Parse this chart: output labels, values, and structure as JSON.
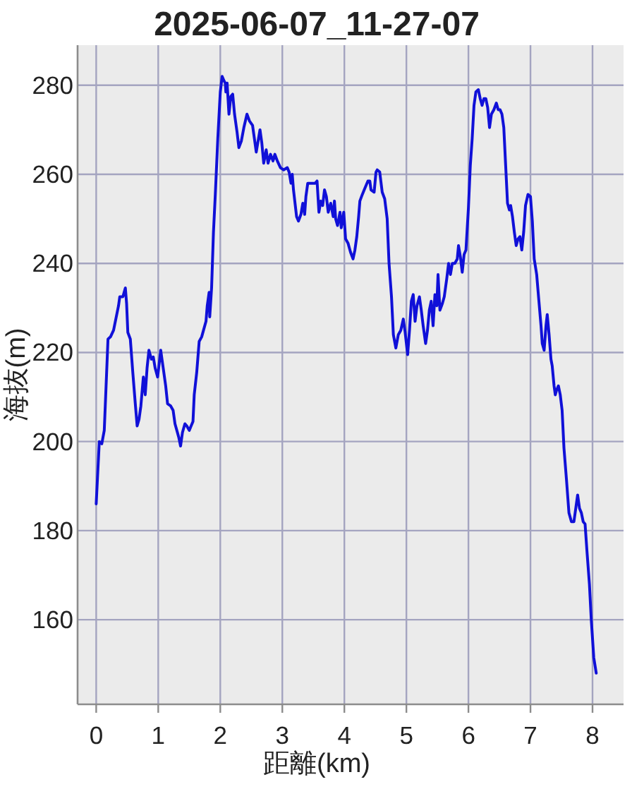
{
  "chart_data": {
    "type": "line",
    "title": "2025-06-07_11-27-07",
    "xlabel": "距離(km)",
    "ylabel": "海抜(m)",
    "x": [
      0,
      0.05,
      0.09,
      0.13,
      0.19,
      0.23,
      0.28,
      0.36,
      0.38,
      0.43,
      0.47,
      0.49,
      0.51,
      0.55,
      0.59,
      0.63,
      0.66,
      0.69,
      0.72,
      0.76,
      0.79,
      0.82,
      0.85,
      0.89,
      0.92,
      0.95,
      0.99,
      1.04,
      1.08,
      1.12,
      1.15,
      1.2,
      1.24,
      1.27,
      1.33,
      1.36,
      1.39,
      1.43,
      1.46,
      1.5,
      1.53,
      1.56,
      1.58,
      1.62,
      1.66,
      1.7,
      1.73,
      1.77,
      1.79,
      1.82,
      1.83,
      1.86,
      1.89,
      1.92,
      1.96,
      2.0,
      2.03,
      2.06,
      2.08,
      2.09,
      2.11,
      2.14,
      2.17,
      2.2,
      2.23,
      2.27,
      2.3,
      2.34,
      2.38,
      2.43,
      2.47,
      2.52,
      2.55,
      2.58,
      2.61,
      2.64,
      2.67,
      2.7,
      2.74,
      2.77,
      2.81,
      2.85,
      2.88,
      2.92,
      2.97,
      3.02,
      3.08,
      3.11,
      3.14,
      3.16,
      3.18,
      3.23,
      3.26,
      3.3,
      3.33,
      3.36,
      3.38,
      3.41,
      3.48,
      3.53,
      3.56,
      3.59,
      3.62,
      3.65,
      3.68,
      3.71,
      3.74,
      3.78,
      3.82,
      3.84,
      3.86,
      3.89,
      3.93,
      3.95,
      3.99,
      4.02,
      4.06,
      4.1,
      4.14,
      4.17,
      4.2,
      4.23,
      4.25,
      4.29,
      4.32,
      4.35,
      4.38,
      4.41,
      4.43,
      4.48,
      4.51,
      4.53,
      4.57,
      4.61,
      4.65,
      4.69,
      4.72,
      4.76,
      4.79,
      4.83,
      4.87,
      4.91,
      4.95,
      4.98,
      5.02,
      5.05,
      5.08,
      5.11,
      5.14,
      5.17,
      5.21,
      5.24,
      5.27,
      5.31,
      5.34,
      5.37,
      5.4,
      5.43,
      5.46,
      5.49,
      5.51,
      5.54,
      5.58,
      5.61,
      5.65,
      5.68,
      5.71,
      5.74,
      5.78,
      5.82,
      5.84,
      5.87,
      5.9,
      5.93,
      5.96,
      6.0,
      6.03,
      6.06,
      6.09,
      6.12,
      6.16,
      6.19,
      6.22,
      6.25,
      6.28,
      6.31,
      6.34,
      6.37,
      6.41,
      6.45,
      6.48,
      6.51,
      6.54,
      6.57,
      6.6,
      6.63,
      6.66,
      6.68,
      6.71,
      6.74,
      6.77,
      6.8,
      6.83,
      6.86,
      6.89,
      6.92,
      6.96,
      7.0,
      7.03,
      7.06,
      7.1,
      7.13,
      7.17,
      7.19,
      7.22,
      7.25,
      7.27,
      7.3,
      7.33,
      7.35,
      7.38,
      7.4,
      7.42,
      7.45,
      7.48,
      7.51,
      7.54,
      7.58,
      7.62,
      7.66,
      7.7,
      7.73,
      7.76,
      7.79,
      7.82,
      7.85,
      7.88,
      7.91,
      7.95,
      7.98,
      8.02,
      8.06
    ],
    "series": [
      {
        "color": "#1010d8",
        "values": [
          186,
          200,
          199.5,
          202.5,
          223,
          223.5,
          225,
          230.5,
          232.5,
          232.5,
          234.5,
          231,
          224.5,
          223,
          215.5,
          208.5,
          203.5,
          205,
          208,
          214.5,
          210.5,
          216.5,
          220.5,
          218.5,
          219,
          216.5,
          214.5,
          220.5,
          216.5,
          212.5,
          208.5,
          208,
          207,
          204,
          201,
          199,
          202,
          204,
          203.5,
          202.5,
          203.5,
          204.5,
          210.5,
          215.5,
          222.5,
          223.5,
          225,
          227,
          230.5,
          233.5,
          228,
          234.5,
          247,
          255.5,
          268,
          278.5,
          282,
          281,
          280.5,
          278.5,
          280.5,
          273.5,
          277.5,
          278,
          273.5,
          269.5,
          266,
          267.5,
          270.5,
          273.5,
          272,
          271,
          268,
          265,
          267.5,
          270,
          267,
          262.5,
          265.5,
          262.5,
          264.5,
          263,
          264.5,
          263,
          261.5,
          261,
          261.5,
          260.5,
          258,
          260,
          256.5,
          250.5,
          249.5,
          251,
          253.5,
          251,
          255,
          258,
          258,
          258,
          258.5,
          251.5,
          254,
          253,
          256.5,
          255,
          251.5,
          253.5,
          250.5,
          254,
          250,
          248.5,
          251.5,
          248,
          251.5,
          245.5,
          244.5,
          242.5,
          241,
          243,
          246,
          250.5,
          254,
          255.5,
          256.5,
          257.5,
          258.5,
          258.5,
          256.5,
          256,
          260.5,
          261,
          260.5,
          256,
          254.5,
          250,
          240,
          232.5,
          224,
          221,
          224,
          225,
          227.5,
          224.5,
          219.5,
          225,
          231.5,
          233,
          227,
          230.5,
          232.5,
          229.5,
          226,
          222,
          225,
          229.5,
          231.5,
          226,
          233,
          230.5,
          237.5,
          229.5,
          231,
          232.5,
          236.5,
          240,
          237.5,
          240,
          240,
          241,
          244,
          241.5,
          238,
          242,
          243,
          252.5,
          262,
          268,
          275.5,
          278.5,
          279,
          277,
          275.5,
          277,
          277,
          275,
          270.5,
          273.5,
          274.5,
          276,
          274.5,
          274.5,
          273.5,
          270.5,
          262,
          253.5,
          252,
          253,
          250.5,
          247,
          244,
          245.5,
          246,
          243,
          247,
          253,
          255.5,
          255,
          249.5,
          241,
          237.5,
          232.5,
          226,
          222,
          220.5,
          226,
          228.5,
          224,
          218.5,
          217,
          212.5,
          210.5,
          211.5,
          212.5,
          210.5,
          207,
          198.5,
          191.5,
          184,
          182,
          182,
          185,
          188,
          185,
          184,
          182,
          181.5,
          175.5,
          168,
          160,
          151.5,
          148
        ]
      }
    ],
    "xlim": [
      -0.3,
      8.5
    ],
    "ylim": [
      141,
      289
    ],
    "xticks": [
      0,
      1,
      2,
      3,
      4,
      5,
      6,
      7,
      8
    ],
    "yticks": [
      160,
      180,
      200,
      220,
      240,
      260,
      280
    ],
    "grid": true
  }
}
